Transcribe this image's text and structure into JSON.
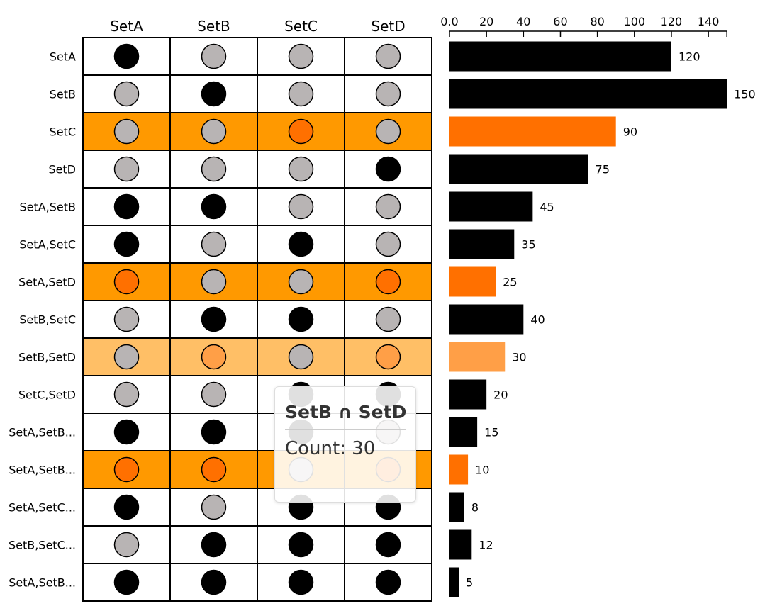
{
  "chart_data": {
    "type": "upset",
    "set_names": [
      "SetA",
      "SetB",
      "SetC",
      "SetD"
    ],
    "intersections": [
      {
        "label": "SetA",
        "members": [
          1,
          0,
          0,
          0
        ],
        "count": 120
      },
      {
        "label": "SetB",
        "members": [
          0,
          1,
          0,
          0
        ],
        "count": 150
      },
      {
        "label": "SetC",
        "members": [
          0,
          0,
          1,
          0
        ],
        "count": 90,
        "highlight": "selected"
      },
      {
        "label": "SetD",
        "members": [
          0,
          0,
          0,
          1
        ],
        "count": 75
      },
      {
        "label": "SetA,SetB",
        "members": [
          1,
          1,
          0,
          0
        ],
        "count": 45
      },
      {
        "label": "SetA,SetC",
        "members": [
          1,
          0,
          1,
          0
        ],
        "count": 35
      },
      {
        "label": "SetA,SetD",
        "members": [
          1,
          0,
          0,
          1
        ],
        "count": 25,
        "highlight": "selected"
      },
      {
        "label": "SetB,SetC",
        "members": [
          0,
          1,
          1,
          0
        ],
        "count": 40
      },
      {
        "label": "SetB,SetD",
        "members": [
          0,
          1,
          0,
          1
        ],
        "count": 30,
        "highlight": "hover"
      },
      {
        "label": "SetC,SetD",
        "members": [
          0,
          0,
          1,
          1
        ],
        "count": 20
      },
      {
        "label": "SetA,SetB...",
        "members": [
          1,
          1,
          1,
          0
        ],
        "count": 15
      },
      {
        "label": "SetA,SetB...",
        "members": [
          1,
          1,
          0,
          1
        ],
        "count": 10,
        "highlight": "selected"
      },
      {
        "label": "SetA,SetC...",
        "members": [
          1,
          0,
          1,
          1
        ],
        "count": 8
      },
      {
        "label": "SetB,SetC...",
        "members": [
          0,
          1,
          1,
          1
        ],
        "count": 12
      },
      {
        "label": "SetA,SetB...",
        "members": [
          1,
          1,
          1,
          1
        ],
        "count": 5
      }
    ],
    "x_ticks": [
      "0.0",
      "20",
      "40",
      "60",
      "80",
      "100",
      "120",
      "140"
    ],
    "x_tick_values": [
      0,
      20,
      40,
      60,
      80,
      100,
      120,
      140
    ],
    "xlim": [
      0,
      150
    ],
    "colors": {
      "member": "#000000",
      "non_member": "#b8b4b4",
      "bar": "#000000",
      "selected_row": "#ff9900",
      "selected_mark": "#ff7000",
      "hover_row": "#ffbf66",
      "hover_mark": "#ff9f47"
    }
  },
  "tooltip": {
    "title": "SetB ∩ SetD",
    "count_text": "Count: 30"
  }
}
